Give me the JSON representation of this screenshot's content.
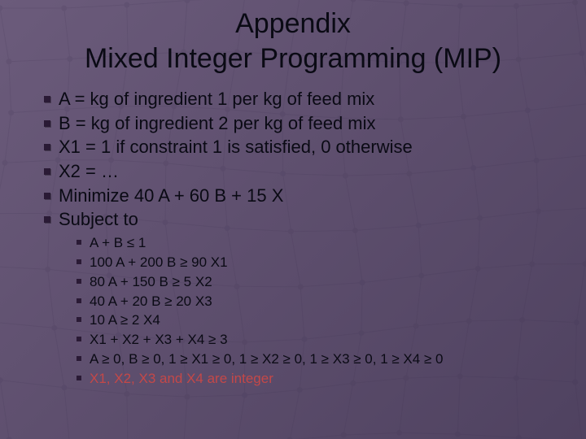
{
  "title_line1": "Appendix",
  "title_line2": "Mixed Integer Programming (MIP)",
  "bullets": [
    "A = kg of ingredient 1 per kg of feed mix",
    "B = kg of ingredient 2 per kg of feed mix",
    "X1 = 1 if constraint 1 is satisfied, 0 otherwise",
    "X2 = …",
    "Minimize 40 A + 60 B + 15 X",
    "Subject to"
  ],
  "subbullets": [
    "A + B ≤ 1",
    "100 A + 200 B ≥ 90 X1",
    "80 A + 150 B ≥ 5 X2",
    "40 A + 20 B ≥ 20 X3",
    "10 A ≥ 2 X4",
    "X1 + X2 + X3 + X4 ≥ 3",
    "A ≥ 0, B ≥ 0, 1 ≥ X1 ≥ 0, 1 ≥ X2 ≥ 0, 1 ≥ X3 ≥ 0, 1 ≥ X4 ≥ 0"
  ],
  "subbullet_highlight": "X1, X2, X3 and X4 are integer",
  "colors": {
    "bg_top": "#6b5b7b",
    "bg_bottom": "#4f4260",
    "text": "#0a0a14",
    "bullet": "#2a1a35",
    "highlight": "#c44848",
    "mesh": "#3d3050"
  },
  "fontsize": {
    "title": 34,
    "l1": 22,
    "l2": 17
  },
  "mesh_style": {
    "cols": 10,
    "rows": 8,
    "node_r": 3,
    "opacity": 0.15
  }
}
